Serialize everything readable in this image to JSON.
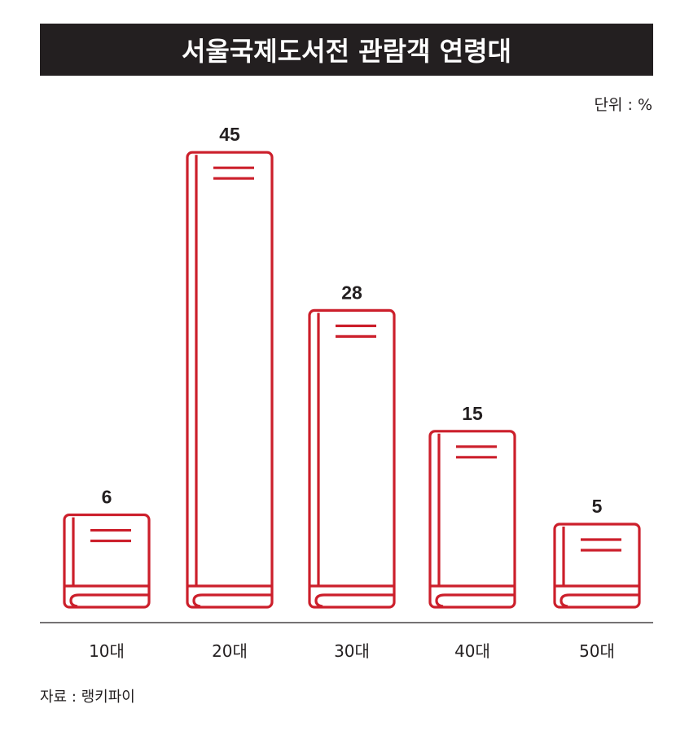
{
  "header": {
    "title": "서울국제도서전 관람객 연령대",
    "unit": "단위 : %"
  },
  "footer": {
    "source": "자료 : 랭키파이"
  },
  "colors": {
    "book": "#cc1f2b",
    "title_bg": "#231f20",
    "text": "#231f20"
  },
  "chart_data": {
    "type": "bar",
    "title": "서울국제도서전 관람객 연령대",
    "unit": "단위 : %",
    "categories": [
      "10대",
      "20대",
      "30대",
      "40대",
      "50대"
    ],
    "values": [
      6,
      45,
      28,
      15,
      5
    ],
    "grid": false,
    "legend": "none"
  }
}
